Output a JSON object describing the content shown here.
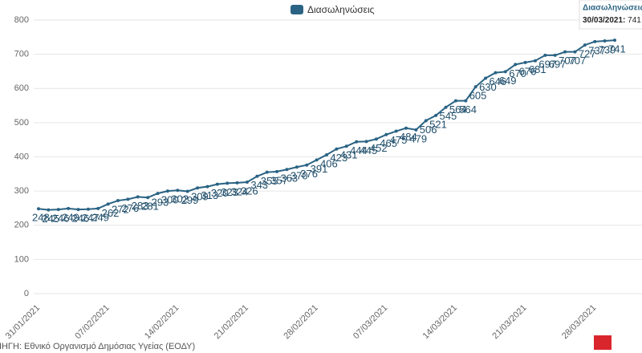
{
  "chart_data": {
    "type": "line",
    "series": [
      {
        "name": "Διασωληνώσεις",
        "color": "#2a6384",
        "values": [
          248,
          245,
          246,
          249,
          246,
          247,
          249,
          262,
          272,
          276,
          283,
          281,
          293,
          300,
          302,
          299,
          309,
          313,
          320,
          323,
          324,
          326,
          343,
          355,
          357,
          363,
          370,
          376,
          391,
          406,
          423,
          431,
          444,
          445,
          452,
          465,
          475,
          484,
          479,
          506,
          521,
          545,
          564,
          564,
          605,
          630,
          646,
          649,
          670,
          676,
          681,
          697,
          697,
          707,
          707,
          727,
          737,
          739,
          741
        ]
      }
    ],
    "categories": [
      "31/01/2021",
      null,
      null,
      null,
      null,
      null,
      null,
      "07/02/2021",
      null,
      null,
      null,
      null,
      null,
      null,
      "14/02/2021",
      null,
      null,
      null,
      null,
      null,
      null,
      "21/02/2021",
      null,
      null,
      null,
      null,
      null,
      null,
      "28/02/2021",
      null,
      null,
      null,
      null,
      null,
      null,
      "07/03/2021",
      null,
      null,
      null,
      null,
      null,
      null,
      "14/03/2021",
      null,
      null,
      null,
      null,
      null,
      null,
      "21/03/2021",
      null,
      null,
      null,
      null,
      null,
      null,
      "28/03/2021",
      null,
      null
    ],
    "ylim": [
      0,
      800
    ],
    "yticks": [
      0,
      100,
      200,
      300,
      400,
      500,
      600,
      700,
      800
    ],
    "grid": true,
    "tooltip": {
      "title": "Διασωληνώσεις",
      "date": "30/03/2021:",
      "value": 741
    },
    "source": "ΠΗΓΗ: Εθνικό Οργανισμό Δημόσιας Υγείας (ΕΟΔΥ)"
  }
}
